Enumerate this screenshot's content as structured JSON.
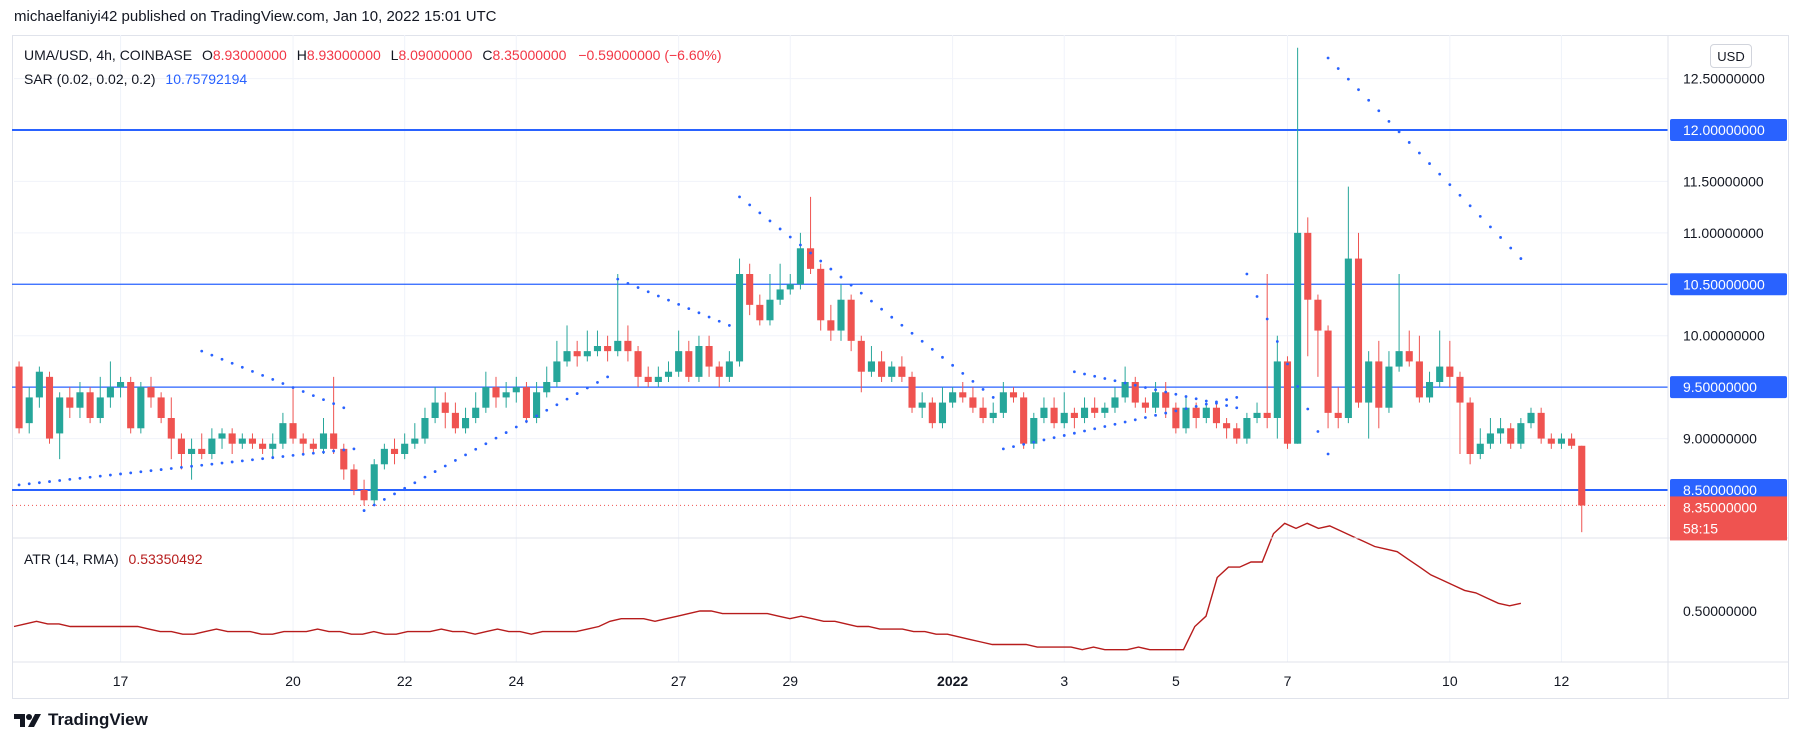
{
  "publisher_line": "michaelfaniyi42 published on TradingView.com, Jan 10, 2022 15:01 UTC",
  "legend": {
    "symbol": "UMA/USD, 4h, COINBASE",
    "o_label": "O",
    "o_value": "8.93000000",
    "h_label": "H",
    "h_value": "8.93000000",
    "l_label": "L",
    "l_value": "8.09000000",
    "c_label": "C",
    "c_value": "8.35000000",
    "change": "−0.59000000 (−6.60%)",
    "sar_label": "SAR (0.02, 0.02, 0.2)",
    "sar_value": "10.75792194",
    "atr_label": "ATR (14, RMA)",
    "atr_value": "0.53350492"
  },
  "currency_button": "USD",
  "footer_brand": "TradingView",
  "colors": {
    "up": "#26a69a",
    "down": "#ef5350",
    "sar": "#2962ff",
    "hline": "#2962ff",
    "atr": "#b71c1c",
    "grid": "#f0f3fa",
    "axis_text": "#131722"
  },
  "chart_data": [
    {
      "type": "candlestick",
      "symbol": "UMA/USD",
      "timeframe": "4h",
      "exchange": "COINBASE",
      "y_axis_ticks": [
        "9.00000000",
        "10.00000000",
        "11.00000000",
        "11.50000000",
        "12.50000000"
      ],
      "ylim": [
        8.0,
        12.8
      ],
      "x_axis_ticks": [
        "17",
        "20",
        "22",
        "24",
        "27",
        "29",
        "2022",
        "3",
        "5",
        "7",
        "10",
        "12"
      ],
      "horizontal_lines": [
        {
          "label": "12.00000000",
          "value": 12.0
        },
        {
          "label": "10.50000000",
          "value": 10.5
        },
        {
          "label": "9.50000000",
          "value": 9.5
        },
        {
          "label": "8.50000000",
          "value": 8.5
        }
      ],
      "last_price": {
        "label": "8.35000000",
        "countdown": "58:15",
        "value": 8.35
      },
      "candles": [
        [
          9.7,
          9.1,
          9.75,
          9.05
        ],
        [
          9.15,
          9.4,
          9.5,
          9.05
        ],
        [
          9.4,
          9.65,
          9.7,
          9.3
        ],
        [
          9.6,
          9.0,
          9.65,
          8.95
        ],
        [
          9.05,
          9.4,
          9.45,
          8.8
        ],
        [
          9.4,
          9.3,
          9.5,
          9.2
        ],
        [
          9.3,
          9.45,
          9.55,
          9.2
        ],
        [
          9.45,
          9.2,
          9.5,
          9.15
        ],
        [
          9.2,
          9.4,
          9.6,
          9.15
        ],
        [
          9.4,
          9.5,
          9.75,
          9.3
        ],
        [
          9.5,
          9.55,
          9.6,
          9.4
        ],
        [
          9.55,
          9.1,
          9.6,
          9.05
        ],
        [
          9.1,
          9.5,
          9.55,
          9.05
        ],
        [
          9.5,
          9.4,
          9.6,
          9.3
        ],
        [
          9.4,
          9.2,
          9.45,
          9.15
        ],
        [
          9.2,
          9.0,
          9.4,
          8.8
        ],
        [
          9.0,
          8.85,
          9.05,
          8.7
        ],
        [
          8.85,
          8.9,
          9.0,
          8.6
        ],
        [
          8.9,
          8.85,
          9.05,
          8.8
        ],
        [
          8.85,
          9.0,
          9.1,
          8.8
        ],
        [
          9.0,
          9.05,
          9.1,
          8.9
        ],
        [
          9.05,
          8.95,
          9.1,
          8.85
        ],
        [
          8.95,
          9.0,
          9.05,
          8.9
        ],
        [
          9.0,
          8.95,
          9.05,
          8.9
        ],
        [
          8.95,
          8.9,
          9.0,
          8.85
        ],
        [
          8.9,
          8.95,
          9.05,
          8.8
        ],
        [
          8.95,
          9.15,
          9.25,
          8.9
        ],
        [
          9.15,
          9.0,
          9.5,
          8.95
        ],
        [
          9.0,
          8.95,
          9.05,
          8.85
        ],
        [
          8.95,
          8.9,
          9.0,
          8.85
        ],
        [
          8.9,
          9.05,
          9.2,
          8.85
        ],
        [
          9.05,
          8.9,
          9.6,
          8.85
        ],
        [
          8.9,
          8.7,
          8.95,
          8.6
        ],
        [
          8.7,
          8.5,
          8.75,
          8.45
        ],
        [
          8.5,
          8.4,
          8.6,
          8.35
        ],
        [
          8.4,
          8.75,
          8.8,
          8.35
        ],
        [
          8.75,
          8.9,
          8.95,
          8.7
        ],
        [
          8.9,
          8.85,
          9.0,
          8.75
        ],
        [
          8.85,
          8.95,
          9.05,
          8.8
        ],
        [
          8.95,
          9.0,
          9.15,
          8.9
        ],
        [
          9.0,
          9.2,
          9.3,
          8.95
        ],
        [
          9.2,
          9.35,
          9.5,
          9.15
        ],
        [
          9.35,
          9.25,
          9.45,
          9.1
        ],
        [
          9.25,
          9.1,
          9.35,
          9.05
        ],
        [
          9.1,
          9.2,
          9.3,
          9.05
        ],
        [
          9.2,
          9.3,
          9.45,
          9.15
        ],
        [
          9.3,
          9.5,
          9.65,
          9.25
        ],
        [
          9.5,
          9.4,
          9.6,
          9.3
        ],
        [
          9.4,
          9.45,
          9.55,
          9.3
        ],
        [
          9.45,
          9.5,
          9.6,
          9.35
        ],
        [
          9.5,
          9.2,
          9.55,
          9.15
        ],
        [
          9.2,
          9.45,
          9.55,
          9.15
        ],
        [
          9.45,
          9.55,
          9.7,
          9.4
        ],
        [
          9.55,
          9.75,
          9.95,
          9.5
        ],
        [
          9.75,
          9.85,
          10.1,
          9.7
        ],
        [
          9.85,
          9.8,
          9.95,
          9.7
        ],
        [
          9.8,
          9.85,
          10.05,
          9.75
        ],
        [
          9.85,
          9.9,
          10.05,
          9.8
        ],
        [
          9.9,
          9.85,
          10.0,
          9.75
        ],
        [
          9.85,
          9.95,
          10.6,
          9.8
        ],
        [
          9.95,
          9.85,
          10.1,
          9.75
        ],
        [
          9.85,
          9.6,
          9.9,
          9.5
        ],
        [
          9.6,
          9.55,
          9.7,
          9.5
        ],
        [
          9.55,
          9.6,
          9.7,
          9.5
        ],
        [
          9.6,
          9.65,
          9.75,
          9.55
        ],
        [
          9.65,
          9.85,
          10.05,
          9.6
        ],
        [
          9.85,
          9.6,
          9.95,
          9.55
        ],
        [
          9.6,
          9.9,
          10.0,
          9.55
        ],
        [
          9.9,
          9.7,
          10.0,
          9.6
        ],
        [
          9.7,
          9.6,
          9.75,
          9.5
        ],
        [
          9.6,
          9.75,
          9.85,
          9.55
        ],
        [
          9.75,
          10.6,
          10.75,
          9.7
        ],
        [
          10.6,
          10.3,
          10.7,
          10.2
        ],
        [
          10.3,
          10.15,
          10.4,
          10.1
        ],
        [
          10.15,
          10.35,
          10.6,
          10.1
        ],
        [
          10.35,
          10.45,
          10.7,
          10.3
        ],
        [
          10.45,
          10.5,
          10.6,
          10.4
        ],
        [
          10.5,
          10.85,
          11.0,
          10.45
        ],
        [
          10.85,
          10.65,
          11.35,
          10.6
        ],
        [
          10.65,
          10.15,
          10.7,
          10.05
        ],
        [
          10.15,
          10.05,
          10.3,
          9.95
        ],
        [
          10.05,
          10.35,
          10.5,
          9.95
        ],
        [
          10.35,
          9.95,
          10.4,
          9.85
        ],
        [
          9.95,
          9.65,
          10.0,
          9.45
        ],
        [
          9.65,
          9.75,
          9.9,
          9.6
        ],
        [
          9.75,
          9.6,
          9.85,
          9.55
        ],
        [
          9.6,
          9.7,
          9.75,
          9.55
        ],
        [
          9.7,
          9.6,
          9.8,
          9.55
        ],
        [
          9.6,
          9.3,
          9.65,
          9.25
        ],
        [
          9.3,
          9.35,
          9.45,
          9.2
        ],
        [
          9.35,
          9.15,
          9.4,
          9.1
        ],
        [
          9.15,
          9.35,
          9.5,
          9.1
        ],
        [
          9.35,
          9.45,
          9.5,
          9.3
        ],
        [
          9.45,
          9.4,
          9.55,
          9.35
        ],
        [
          9.4,
          9.3,
          9.5,
          9.25
        ],
        [
          9.3,
          9.2,
          9.4,
          9.15
        ],
        [
          9.2,
          9.25,
          9.35,
          9.15
        ],
        [
          9.25,
          9.45,
          9.55,
          9.2
        ],
        [
          9.45,
          9.4,
          9.5,
          9.35
        ],
        [
          9.4,
          8.95,
          9.45,
          8.9
        ],
        [
          8.95,
          9.2,
          9.25,
          8.9
        ],
        [
          9.2,
          9.3,
          9.4,
          9.15
        ],
        [
          9.3,
          9.15,
          9.4,
          9.1
        ],
        [
          9.15,
          9.25,
          9.45,
          9.1
        ],
        [
          9.25,
          9.2,
          9.3,
          9.1
        ],
        [
          9.2,
          9.3,
          9.4,
          9.15
        ],
        [
          9.3,
          9.25,
          9.4,
          9.2
        ],
        [
          9.25,
          9.3,
          9.35,
          9.2
        ],
        [
          9.3,
          9.4,
          9.5,
          9.25
        ],
        [
          9.4,
          9.55,
          9.7,
          9.35
        ],
        [
          9.55,
          9.35,
          9.6,
          9.3
        ],
        [
          9.35,
          9.3,
          9.4,
          9.25
        ],
        [
          9.3,
          9.45,
          9.55,
          9.25
        ],
        [
          9.45,
          9.3,
          9.55,
          9.2
        ],
        [
          9.3,
          9.1,
          9.35,
          9.05
        ],
        [
          9.1,
          9.3,
          9.4,
          9.05
        ],
        [
          9.3,
          9.2,
          9.35,
          9.1
        ],
        [
          9.2,
          9.3,
          9.35,
          9.15
        ],
        [
          9.3,
          9.15,
          9.35,
          9.1
        ],
        [
          9.15,
          9.1,
          9.2,
          9.0
        ],
        [
          9.1,
          9.0,
          9.15,
          8.95
        ],
        [
          9.0,
          9.2,
          9.25,
          8.95
        ],
        [
          9.2,
          9.25,
          9.35,
          9.15
        ],
        [
          9.25,
          9.2,
          10.6,
          9.1
        ],
        [
          9.2,
          9.75,
          10.0,
          9.0
        ],
        [
          9.75,
          8.95,
          9.8,
          8.9
        ],
        [
          8.95,
          11.0,
          12.8,
          8.95
        ],
        [
          11.0,
          10.35,
          11.15,
          9.8
        ],
        [
          10.35,
          10.05,
          10.4,
          9.6
        ],
        [
          10.05,
          9.25,
          10.1,
          9.1
        ],
        [
          9.25,
          9.2,
          9.5,
          9.1
        ],
        [
          9.2,
          10.75,
          11.45,
          9.15
        ],
        [
          10.75,
          9.35,
          11.0,
          9.3
        ],
        [
          9.35,
          9.75,
          9.85,
          9.0
        ],
        [
          9.75,
          9.3,
          9.95,
          9.1
        ],
        [
          9.3,
          9.7,
          9.85,
          9.25
        ],
        [
          9.7,
          9.85,
          10.6,
          9.65
        ],
        [
          9.85,
          9.75,
          10.05,
          9.7
        ],
        [
          9.75,
          9.4,
          10.0,
          9.35
        ],
        [
          9.4,
          9.55,
          9.65,
          9.35
        ],
        [
          9.55,
          9.7,
          10.05,
          9.5
        ],
        [
          9.7,
          9.6,
          9.95,
          9.5
        ],
        [
          9.6,
          9.35,
          9.65,
          8.85
        ],
        [
          9.35,
          8.85,
          9.4,
          8.75
        ],
        [
          8.85,
          8.95,
          9.1,
          8.8
        ],
        [
          8.95,
          9.05,
          9.2,
          8.9
        ],
        [
          9.05,
          9.1,
          9.2,
          8.95
        ],
        [
          9.1,
          8.95,
          9.15,
          8.9
        ],
        [
          8.95,
          9.15,
          9.2,
          8.9
        ],
        [
          9.15,
          9.25,
          9.3,
          9.1
        ],
        [
          9.25,
          9.0,
          9.3,
          8.95
        ],
        [
          9.0,
          8.95,
          9.05,
          8.9
        ],
        [
          8.95,
          9.0,
          9.05,
          8.9
        ],
        [
          9.0,
          8.93,
          9.05,
          8.9
        ],
        [
          8.93,
          8.35,
          8.93,
          8.09
        ]
      ],
      "sar_segments": [
        {
          "from": 0,
          "to": 33,
          "start": 8.55,
          "end": 8.9
        },
        {
          "from": 18,
          "to": 32,
          "start": 9.85,
          "end": 9.3
        },
        {
          "from": 34,
          "to": 58,
          "start": 8.3,
          "end": 9.6
        },
        {
          "from": 59,
          "to": 70,
          "start": 10.55,
          "end": 10.1
        },
        {
          "from": 71,
          "to": 96,
          "start": 11.35,
          "end": 9.4
        },
        {
          "from": 97,
          "to": 120,
          "start": 8.9,
          "end": 9.4
        },
        {
          "from": 104,
          "to": 120,
          "start": 9.65,
          "end": 9.3
        },
        {
          "from": 121,
          "to": 129,
          "start": 10.6,
          "end": 8.85
        },
        {
          "from": 129,
          "to": 148,
          "start": 12.7,
          "end": 10.75
        }
      ]
    },
    {
      "type": "line",
      "name": "ATR (14, RMA)",
      "y_axis_ticks": [
        "0.50000000"
      ],
      "ylim": [
        0.3,
        1.0
      ],
      "values": [
        0.44,
        0.45,
        0.46,
        0.45,
        0.45,
        0.44,
        0.44,
        0.44,
        0.44,
        0.44,
        0.44,
        0.44,
        0.43,
        0.42,
        0.42,
        0.41,
        0.41,
        0.42,
        0.43,
        0.42,
        0.42,
        0.42,
        0.41,
        0.41,
        0.42,
        0.42,
        0.42,
        0.43,
        0.42,
        0.42,
        0.41,
        0.41,
        0.42,
        0.41,
        0.41,
        0.42,
        0.42,
        0.42,
        0.43,
        0.42,
        0.42,
        0.41,
        0.42,
        0.43,
        0.42,
        0.42,
        0.41,
        0.42,
        0.42,
        0.42,
        0.42,
        0.43,
        0.44,
        0.46,
        0.47,
        0.47,
        0.47,
        0.46,
        0.47,
        0.48,
        0.49,
        0.5,
        0.5,
        0.49,
        0.49,
        0.49,
        0.49,
        0.49,
        0.48,
        0.47,
        0.48,
        0.47,
        0.46,
        0.46,
        0.45,
        0.44,
        0.44,
        0.43,
        0.43,
        0.43,
        0.42,
        0.42,
        0.41,
        0.41,
        0.4,
        0.39,
        0.38,
        0.37,
        0.37,
        0.37,
        0.37,
        0.36,
        0.36,
        0.36,
        0.36,
        0.35,
        0.36,
        0.35,
        0.35,
        0.35,
        0.36,
        0.35,
        0.35,
        0.35,
        0.35,
        0.44,
        0.48,
        0.63,
        0.67,
        0.67,
        0.69,
        0.69,
        0.8,
        0.84,
        0.82,
        0.84,
        0.82,
        0.83,
        0.81,
        0.79,
        0.77,
        0.75,
        0.74,
        0.73,
        0.7,
        0.67,
        0.64,
        0.62,
        0.6,
        0.58,
        0.57,
        0.55,
        0.53,
        0.52,
        0.53
      ]
    }
  ]
}
